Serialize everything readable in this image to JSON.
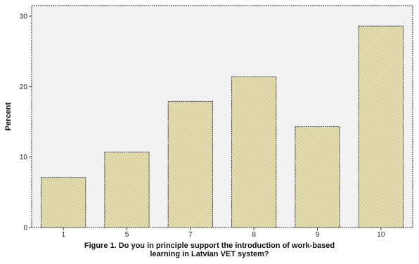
{
  "chart_data": {
    "type": "bar",
    "ylabel": "Percent",
    "xlabel": "",
    "categories": [
      "1",
      "5",
      "7",
      "8",
      "9",
      "10"
    ],
    "values": [
      7.1,
      10.7,
      17.9,
      21.4,
      14.3,
      28.6
    ],
    "ylim": [
      0,
      31.5
    ],
    "yticks": [
      "0",
      "10",
      "20",
      "30"
    ],
    "ytick_values": [
      0,
      10,
      20,
      30
    ],
    "grid": false,
    "colors": {
      "bar_fill": "#e4ddb0",
      "bar_hatch": "#c9bf86",
      "plot_bg": "#f2f2f2",
      "frame": "#333333"
    }
  },
  "caption": {
    "line1": "Figure 1. Do you in principle support the introduction of work-based",
    "line2": "learning in Latvian VET system?"
  }
}
